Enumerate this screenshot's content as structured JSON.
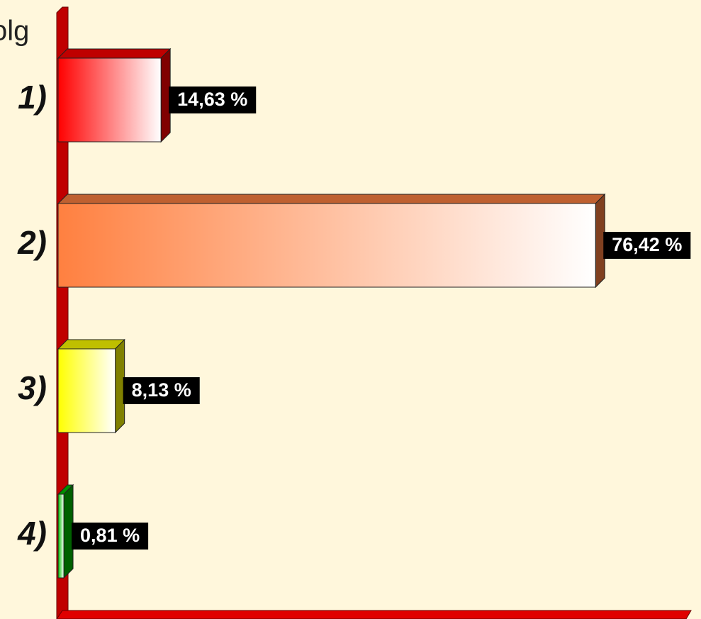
{
  "chart_data": {
    "type": "bar",
    "orientation": "horizontal",
    "y_label": "olg",
    "categories": [
      "1)",
      "2)",
      "3)",
      "4)"
    ],
    "values": [
      14.63,
      76.42,
      8.13,
      0.81
    ],
    "value_labels": [
      "14,63 %",
      "76,42 %",
      "8,13 %",
      "0,81 %"
    ],
    "colors": [
      "#ff0000",
      "#ff8040",
      "#ffff00",
      "#00c000"
    ],
    "xlim": [
      0,
      90
    ]
  }
}
